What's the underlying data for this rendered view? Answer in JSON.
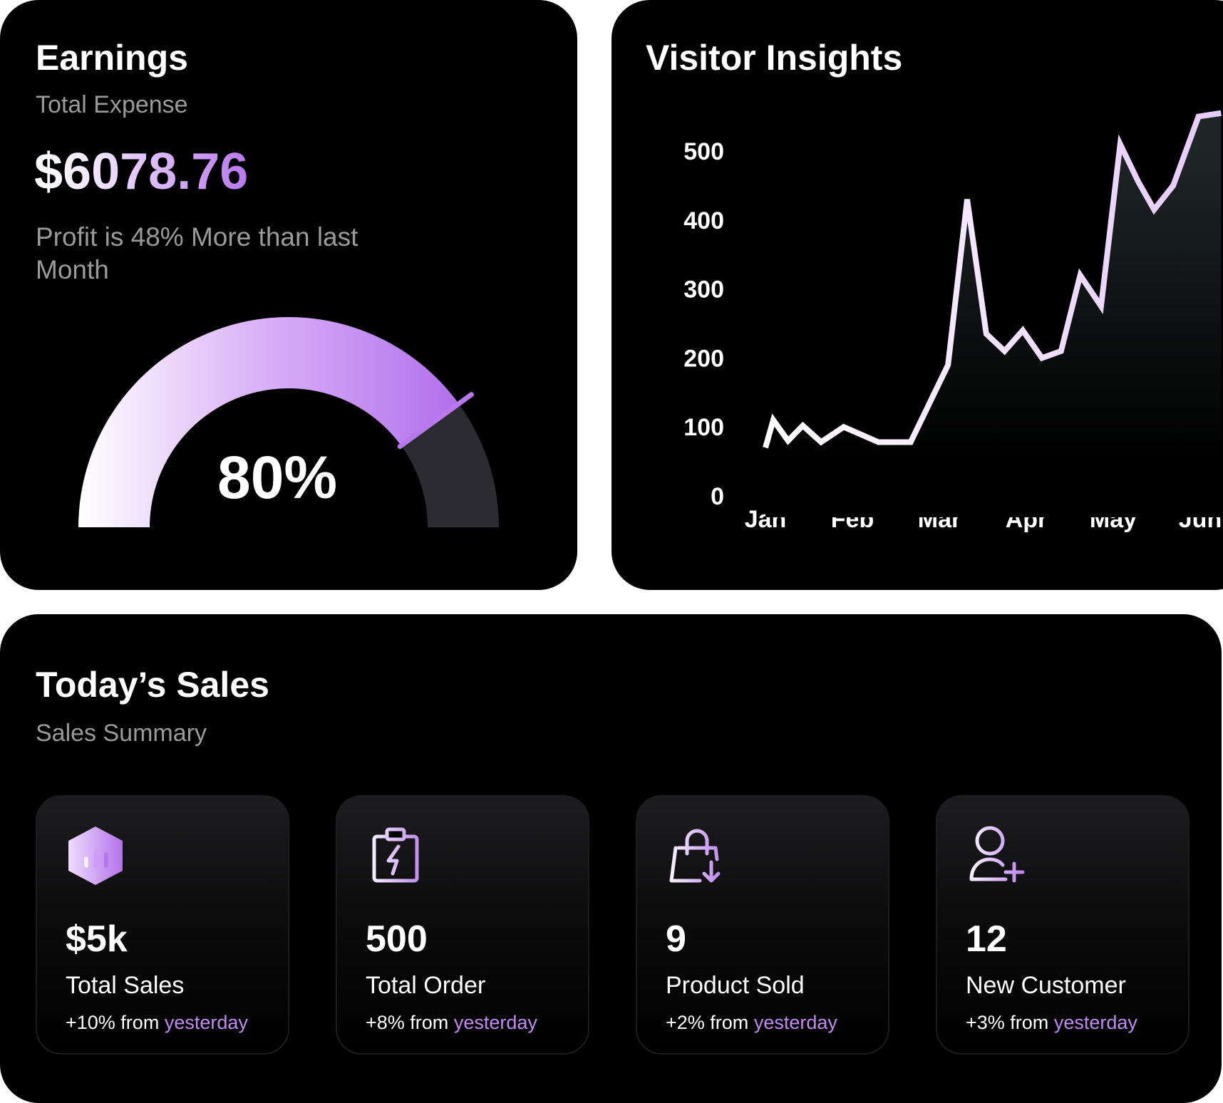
{
  "earnings": {
    "title": "Earnings",
    "subtitle": "Total Expense",
    "amount": "$6078.76",
    "profit_text": "Profit is 48% More than last Month",
    "gauge_percent": 80,
    "gauge_label": "80%"
  },
  "visitor": {
    "title": "Visitor Insights",
    "chart_data": {
      "type": "area",
      "title": "Visitor Insights",
      "y_ticks": [
        "500",
        "400",
        "300",
        "200",
        "100",
        "0"
      ],
      "ylim": [
        0,
        500
      ],
      "x_ticks": [
        "Jan",
        "Feb",
        "Mar",
        "Apr",
        "May",
        "Jun"
      ],
      "grid": false,
      "series": [
        {
          "x": [
            0.0,
            0.09,
            0.26,
            0.43,
            0.64,
            0.9,
            1.3,
            1.67,
            2.1,
            2.32,
            2.54,
            2.75,
            2.96,
            3.18,
            3.4,
            3.62,
            3.86,
            4.08,
            4.29,
            4.47,
            4.69,
            4.98,
            5.24
          ],
          "y": [
            70,
            110,
            80,
            102,
            78,
            100,
            78,
            78,
            190,
            430,
            235,
            210,
            240,
            200,
            210,
            320,
            275,
            510,
            455,
            415,
            450,
            550,
            555
          ]
        }
      ]
    }
  },
  "sales": {
    "title": "Today’s Sales",
    "subtitle": "Sales Summary",
    "cards": [
      {
        "icon": "chart-hexagon-icon",
        "value": "$5k",
        "label": "Total Sales",
        "change": "+10% from",
        "change_hl": "yesterday"
      },
      {
        "icon": "clipboard-bolt-icon",
        "value": "500",
        "label": "Total Order",
        "change": "+8% from",
        "change_hl": "yesterday"
      },
      {
        "icon": "shopping-bag-download-icon",
        "value": "9",
        "label": "Product Sold",
        "change": "+2% from",
        "change_hl": "yesterday"
      },
      {
        "icon": "user-add-icon",
        "value": "12",
        "label": "New Customer",
        "change": "+3% from",
        "change_hl": "yesterday"
      }
    ]
  },
  "colors": {
    "accent": "#b878ee",
    "accent_light": "#e8d4fb",
    "gauge_track": "#2b2b31",
    "card_bg": "#000000"
  }
}
